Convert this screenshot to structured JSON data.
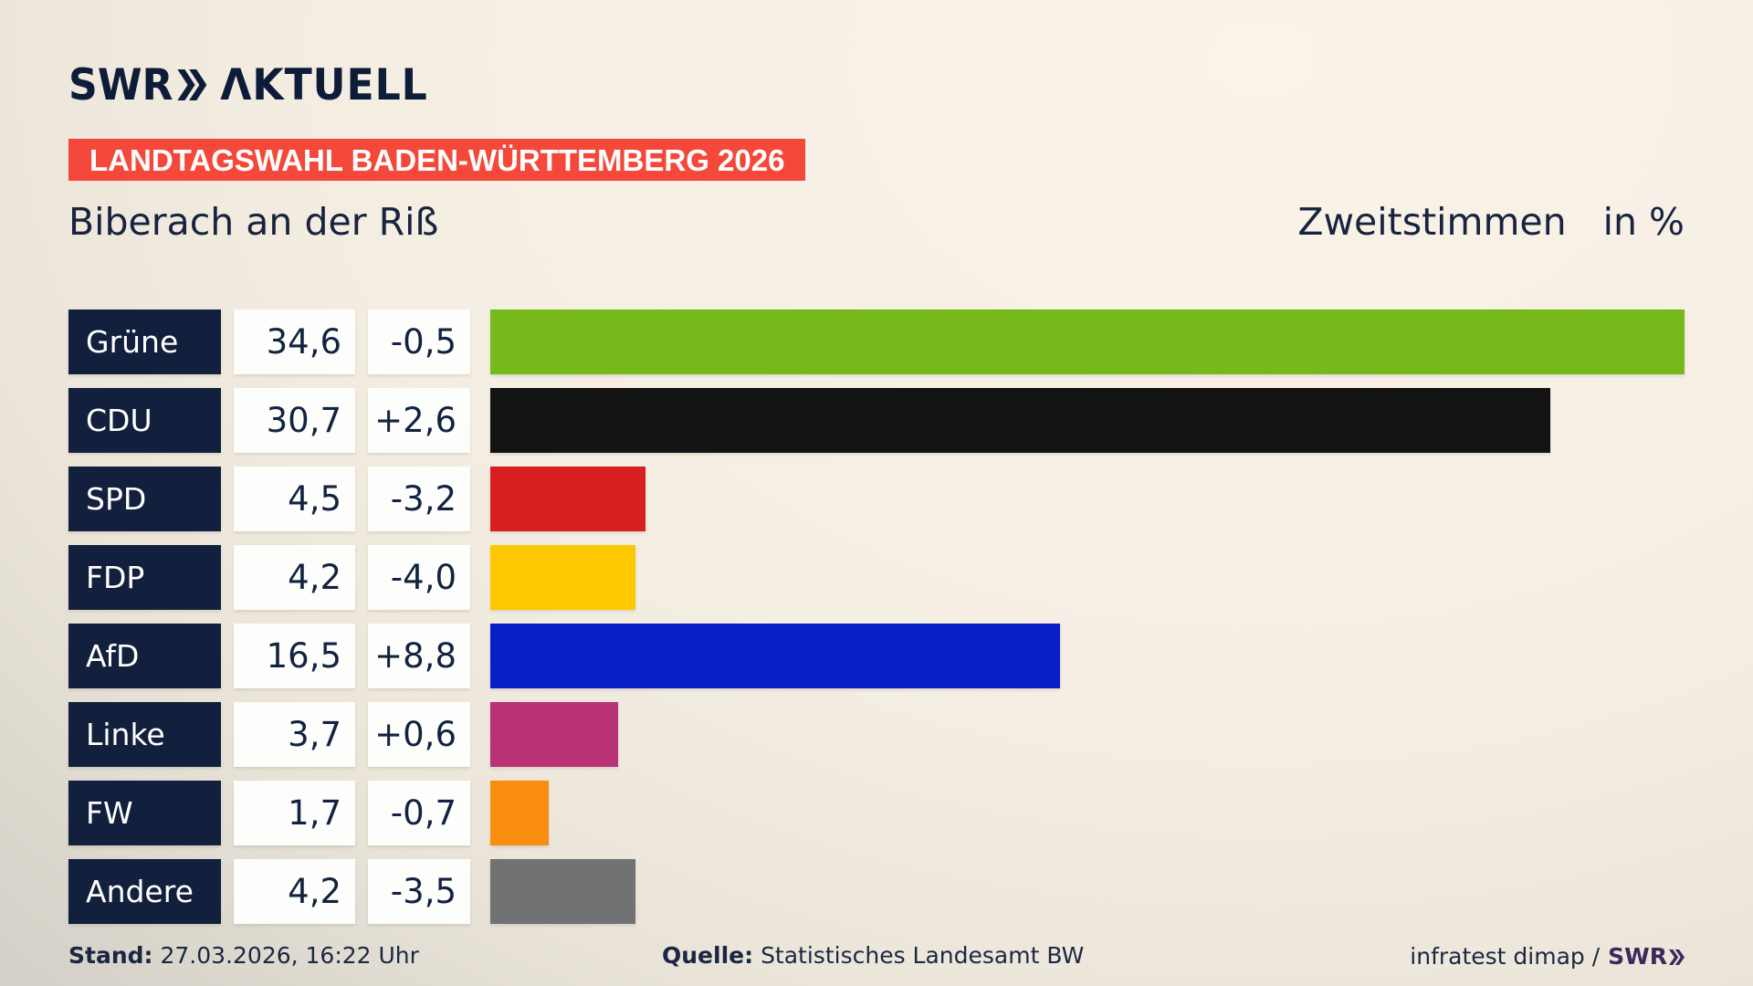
{
  "header": {
    "logo_swr": "SWR",
    "logo_aktuell": "ΛKTUELL",
    "banner": "LANDTAGSWAHL BADEN-WÜRTTEMBERG 2026",
    "region_title": "Biberach an der Riß",
    "vote_type": "Zweitstimmen",
    "unit": "in %"
  },
  "chart_data": {
    "type": "bar",
    "orientation": "horizontal",
    "title": "Biberach an der Riß — Zweitstimmen in %",
    "xlim": [
      0,
      34.6
    ],
    "grid": false,
    "categories": [
      "Grüne",
      "CDU",
      "SPD",
      "FDP",
      "AfD",
      "Linke",
      "FW",
      "Andere"
    ],
    "values": [
      34.6,
      30.7,
      4.5,
      4.2,
      16.5,
      3.7,
      1.7,
      4.2
    ],
    "changes": [
      -0.5,
      2.6,
      -3.2,
      -4.0,
      8.8,
      0.6,
      -0.7,
      -3.5
    ],
    "rows": [
      {
        "party": "Grüne",
        "value": 34.6,
        "value_label": "34,6",
        "change_label": "-0,5",
        "color": "#76b91c"
      },
      {
        "party": "CDU",
        "value": 30.7,
        "value_label": "30,7",
        "change_label": "+2,6",
        "color": "#131313"
      },
      {
        "party": "SPD",
        "value": 4.5,
        "value_label": "4,5",
        "change_label": "-3,2",
        "color": "#d71f1f"
      },
      {
        "party": "FDP",
        "value": 4.2,
        "value_label": "4,2",
        "change_label": "-4,0",
        "color": "#fdc800"
      },
      {
        "party": "AfD",
        "value": 16.5,
        "value_label": "16,5",
        "change_label": "+8,8",
        "color": "#0a1ec8"
      },
      {
        "party": "Linke",
        "value": 3.7,
        "value_label": "3,7",
        "change_label": "+0,6",
        "color": "#b93275"
      },
      {
        "party": "FW",
        "value": 1.7,
        "value_label": "1,7",
        "change_label": "-0,7",
        "color": "#f98d0f"
      },
      {
        "party": "Andere",
        "value": 4.2,
        "value_label": "4,2",
        "change_label": "-3,5",
        "color": "#717273"
      }
    ]
  },
  "footer": {
    "stand_label": "Stand:",
    "stand_value": "27.03.2026, 16:22 Uhr",
    "quelle_label": "Quelle:",
    "quelle_value": "Statistisches Landesamt BW",
    "credit_text": "infratest dimap /",
    "credit_swr": "SWR"
  },
  "colors": {
    "banner_red": "#f4493a",
    "navy": "#13203d",
    "background_cream": "#f5eee3",
    "background_gray": "#c5c1b9",
    "credit_purple": "#3b2a5f"
  }
}
